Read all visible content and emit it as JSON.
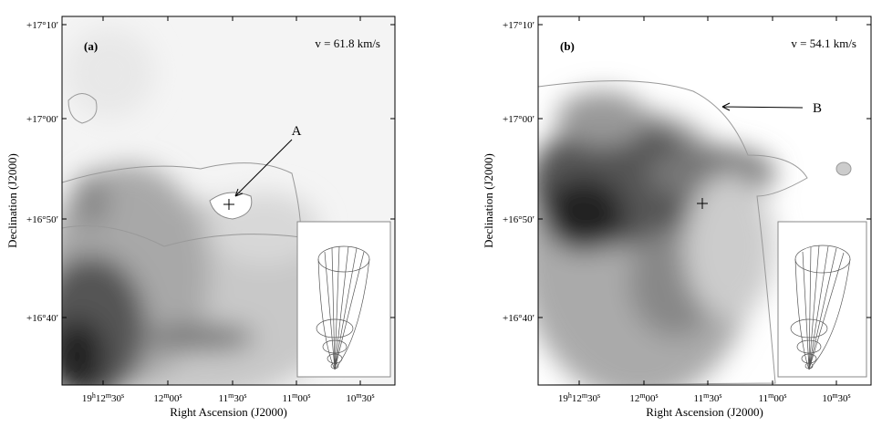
{
  "panels": [
    {
      "label": "(a)",
      "velocity": "v = 61.8 km/s",
      "annotation": "A",
      "x_label": "Right Ascension (J2000)",
      "y_label": "Declination (J2000)",
      "x_ticks": [
        [
          "19",
          "h",
          "12",
          "m",
          "30",
          "s"
        ],
        [
          "12",
          "m",
          "00",
          "s"
        ],
        [
          "11",
          "m",
          "30",
          "s"
        ],
        [
          "11",
          "m",
          "00",
          "s"
        ],
        [
          "10",
          "m",
          "30",
          "s"
        ]
      ],
      "y_ticks": [
        "+17°10′",
        "+17°00′",
        "+16°50′",
        "+16°40′"
      ]
    },
    {
      "label": "(b)",
      "velocity": "v = 54.1 km/s",
      "annotation": "B",
      "x_label": "Right Ascension (J2000)",
      "y_label": "Declination (J2000)",
      "x_ticks": [
        [
          "19",
          "h",
          "12",
          "m",
          "30",
          "s"
        ],
        [
          "12",
          "m",
          "00",
          "s"
        ],
        [
          "11",
          "m",
          "30",
          "s"
        ],
        [
          "11",
          "m",
          "00",
          "s"
        ],
        [
          "10",
          "m",
          "30",
          "s"
        ]
      ],
      "y_ticks": [
        "+17°10′",
        "+17°00′",
        "+16°50′",
        "+16°40′"
      ]
    }
  ]
}
